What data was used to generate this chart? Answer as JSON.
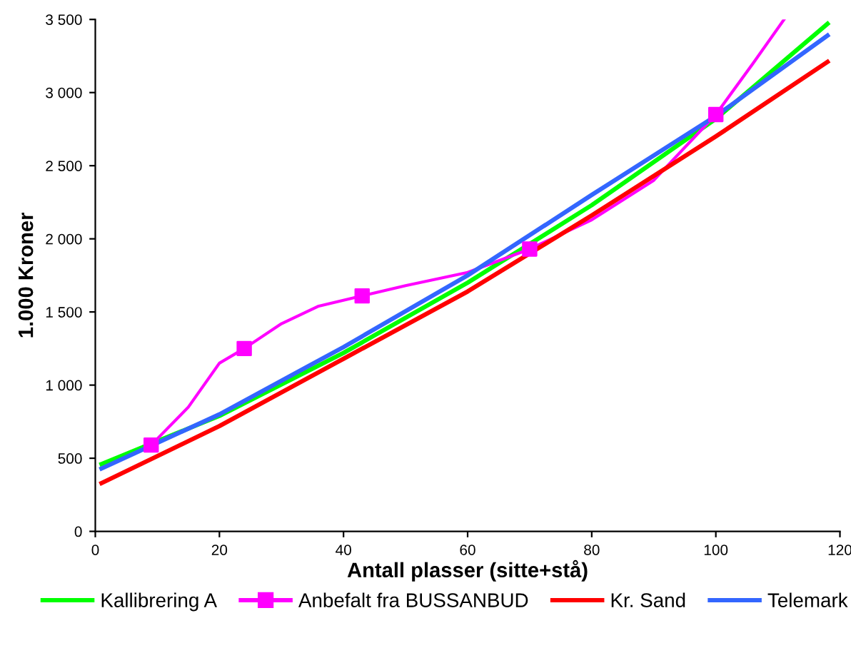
{
  "chart_data": {
    "type": "line",
    "xlabel": "Antall plasser (sitte+stå)",
    "ylabel": "1.000 Kroner",
    "xlim": [
      0,
      120
    ],
    "xticks": [
      0,
      20,
      40,
      60,
      80,
      100,
      120
    ],
    "ylim": [
      0,
      3500
    ],
    "yticks": [
      {
        "value": 0,
        "label": "0"
      },
      {
        "value": 500,
        "label": "500"
      },
      {
        "value": 1000,
        "label": "1 000"
      },
      {
        "value": 1500,
        "label": "1 500"
      },
      {
        "value": 2000,
        "label": "2 000"
      },
      {
        "value": 2500,
        "label": "2 500"
      },
      {
        "value": 3000,
        "label": "3 000"
      },
      {
        "value": 3500,
        "label": "3 500"
      }
    ],
    "grid": false,
    "legend": "bottom",
    "line_style": "solid",
    "series": [
      {
        "name": "Kallibrering A",
        "color": "#00ff00",
        "x": [
          1,
          20,
          40,
          60,
          80,
          100,
          118
        ],
        "values": [
          460,
          790,
          1220,
          1700,
          2230,
          2820,
          3470
        ]
      },
      {
        "name": "Anbefalt fra BUSSANBUD",
        "color": "#ff00ff",
        "x": [
          9,
          15,
          20,
          24,
          30,
          36,
          43,
          50,
          60,
          70,
          80,
          90,
          100,
          106,
          111
        ],
        "values": [
          590,
          850,
          1150,
          1250,
          1420,
          1540,
          1610,
          1680,
          1770,
          1930,
          2130,
          2400,
          2850,
          3200,
          3500
        ]
      },
      {
        "type": "scatter",
        "color": "#ff00ff",
        "marker": "square",
        "x": [
          9,
          24,
          43,
          70,
          100
        ],
        "values": [
          590,
          1250,
          1610,
          1930,
          2850
        ]
      },
      {
        "name": "Kr. Sand",
        "color": "#ff0000",
        "x": [
          1,
          20,
          40,
          60,
          80,
          100,
          118
        ],
        "values": [
          330,
          720,
          1180,
          1640,
          2160,
          2700,
          3210
        ]
      },
      {
        "name": "Telemark",
        "color": "#3366ff",
        "x": [
          1,
          20,
          40,
          60,
          80,
          100,
          118
        ],
        "values": [
          430,
          800,
          1260,
          1750,
          2300,
          2840,
          3390
        ]
      }
    ]
  }
}
